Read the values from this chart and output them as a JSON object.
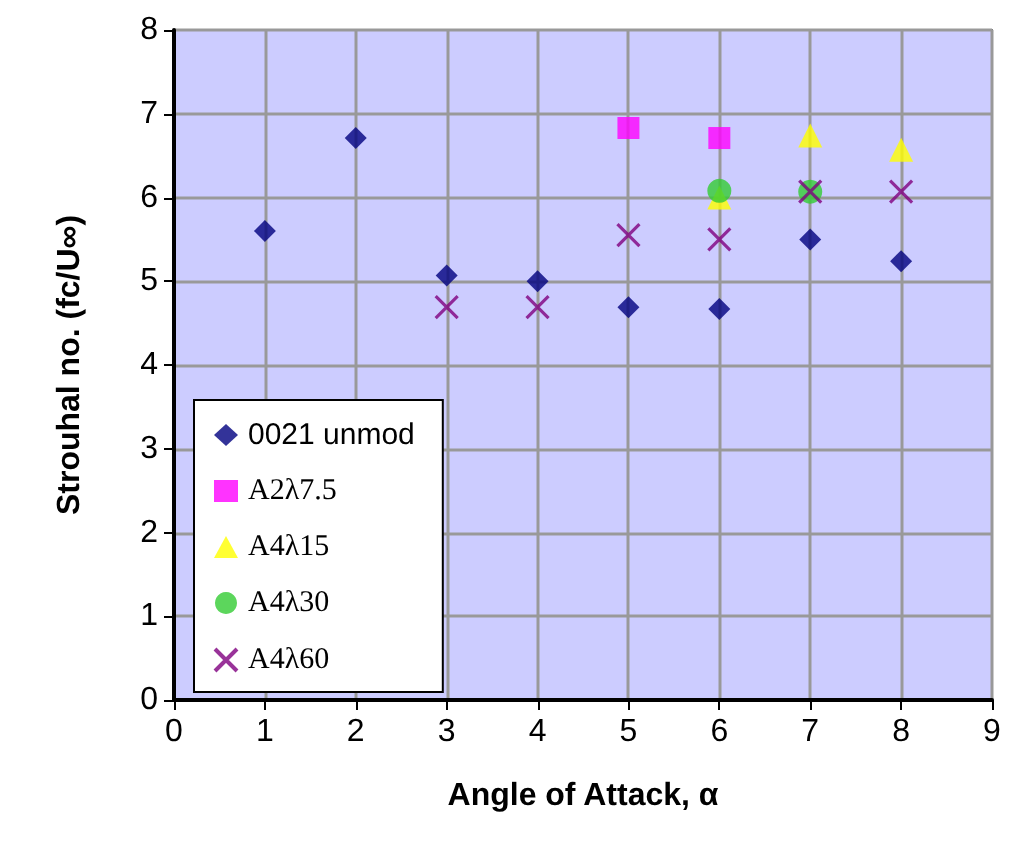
{
  "chart_data": {
    "type": "scatter",
    "xlabel": "Angle of Attack, α",
    "ylabel": "Strouhal no. (fc/U∞)",
    "xlim": [
      0,
      9
    ],
    "xticks": [
      0,
      1,
      2,
      3,
      4,
      5,
      6,
      7,
      8,
      9
    ],
    "ylim": [
      0,
      8
    ],
    "yticks": [
      0,
      1,
      2,
      3,
      4,
      5,
      6,
      7,
      8
    ],
    "grid": true,
    "legend": "bottom left",
    "series": [
      {
        "name": "0021 unmod",
        "color": "#000080",
        "marker": "diamond",
        "x": [
          1,
          2,
          3,
          4,
          5,
          6,
          7,
          8
        ],
        "values": [
          5.6,
          6.71,
          5.07,
          5.0,
          4.69,
          4.67,
          5.5,
          5.24
        ]
      },
      {
        "name": "A2λ7.5",
        "color": "#ff00ff",
        "marker": "square",
        "x": [
          5,
          6
        ],
        "values": [
          6.83,
          6.71
        ]
      },
      {
        "name": "A4λ15",
        "color": "#ffff00",
        "marker": "triangle",
        "x": [
          6,
          7,
          8
        ],
        "values": [
          6.0,
          6.74,
          6.57
        ]
      },
      {
        "name": "A4λ30",
        "color": "#33cc33",
        "marker": "circle",
        "x": [
          6,
          7
        ],
        "values": [
          6.08,
          6.07
        ]
      },
      {
        "name": "A4λ60",
        "color": "#800080",
        "marker": "cross",
        "x": [
          3,
          4,
          5,
          6,
          7,
          8
        ],
        "values": [
          4.69,
          4.69,
          5.55,
          5.5,
          6.07,
          6.07
        ]
      }
    ]
  }
}
